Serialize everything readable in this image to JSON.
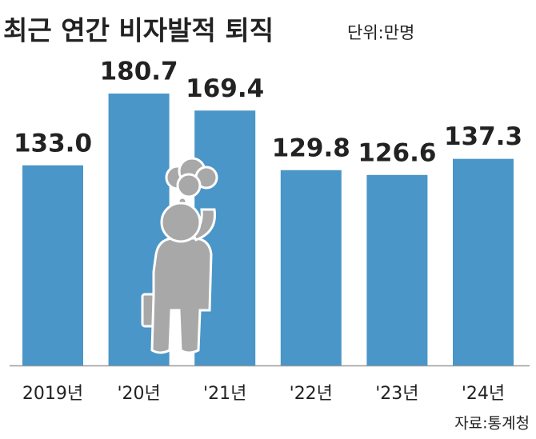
{
  "chart_data": {
    "type": "bar",
    "title": "최근 연간 비자발적 퇴직",
    "subtitle": "단위:만명",
    "source": "자료:통계청",
    "categories": [
      "2019년",
      "'20년",
      "'21년",
      "'22년",
      "'23년",
      "'24년"
    ],
    "values": [
      133.0,
      180.7,
      169.4,
      129.8,
      126.6,
      137.3
    ],
    "value_labels": [
      "133.0",
      "180.7",
      "169.4",
      "129.8",
      "126.6",
      "137.3"
    ],
    "color": "#4a96c8"
  }
}
